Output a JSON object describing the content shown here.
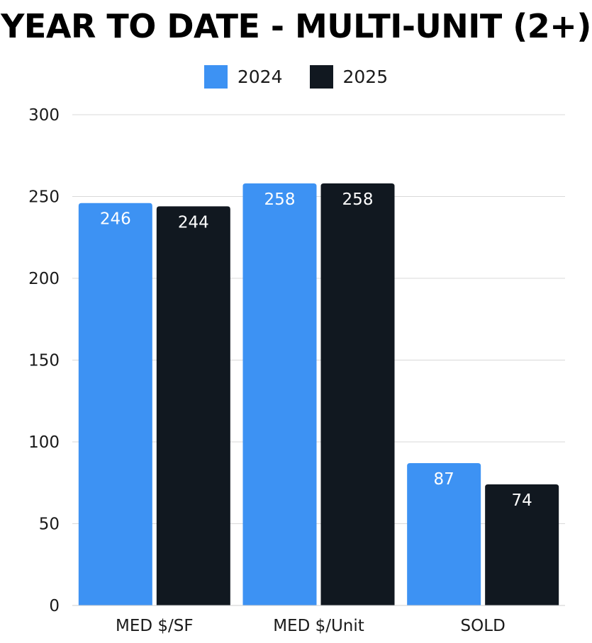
{
  "chart_data": {
    "type": "bar",
    "title": "YEAR TO DATE - MULTI-UNIT (2+)",
    "categories": [
      "MED $/SF",
      "MED $/Unit",
      "SOLD"
    ],
    "series": [
      {
        "name": "2024",
        "color": "#3d92f3",
        "values": [
          246,
          258,
          87
        ]
      },
      {
        "name": "2025",
        "color": "#111820",
        "values": [
          244,
          258,
          74
        ]
      }
    ],
    "ylim": [
      0,
      300
    ],
    "yticks": [
      0,
      50,
      100,
      150,
      200,
      250,
      300
    ],
    "grid": true,
    "legend_position": "top-center"
  }
}
